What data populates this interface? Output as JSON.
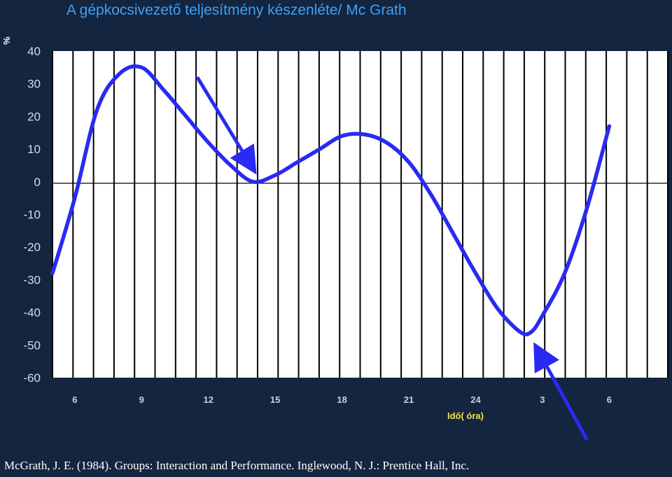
{
  "chart_data": {
    "type": "line",
    "title": "A gépkocsivezető teljesítmény készenléte/ Mc Grath",
    "xlabel": "Idő( óra)",
    "ylabel": "%",
    "ylim": [
      -60,
      40
    ],
    "yticks": [
      "40",
      "30",
      "20",
      "10",
      "0",
      "-10",
      "-20",
      "-30",
      "-40",
      "-50",
      "-60"
    ],
    "xtick_labels": [
      "6",
      "9",
      "12",
      "15",
      "18",
      "21",
      "24",
      "3",
      "6"
    ],
    "grid": "vertical",
    "series": [
      {
        "color": "#2a2af2",
        "x": [
          5.0,
          6.0,
          7.0,
          8.0,
          9.0,
          10.0,
          11.0,
          12.0,
          13.0,
          14.0,
          15.0,
          16.0,
          17.0,
          18.0,
          19.0,
          20.0,
          21.0,
          22.0,
          23.0,
          24.0,
          25.0,
          26.0,
          26.5,
          27.0,
          28.0,
          29.0,
          30.0
        ],
        "y": [
          -28,
          -5,
          22,
          33,
          35,
          28,
          20,
          12,
          5,
          0,
          2,
          6,
          10,
          14,
          14.5,
          12,
          6,
          -4,
          -16,
          -28,
          -39,
          -46,
          -46,
          -41,
          -28,
          -8,
          17
        ]
      }
    ],
    "annotations": [
      {
        "type": "arrow",
        "color": "#2a2af2",
        "from": [
          11.5,
          32
        ],
        "to": [
          14.0,
          4
        ]
      },
      {
        "type": "arrow",
        "color": "#2a2af2",
        "from": [
          29.0,
          -79
        ],
        "to": [
          26.75,
          -51
        ]
      }
    ]
  },
  "citation": "McGrath, J. E. (1984). Groups: Interaction and Performance. Inglewood, N. J.: Prentice Hall, Inc."
}
